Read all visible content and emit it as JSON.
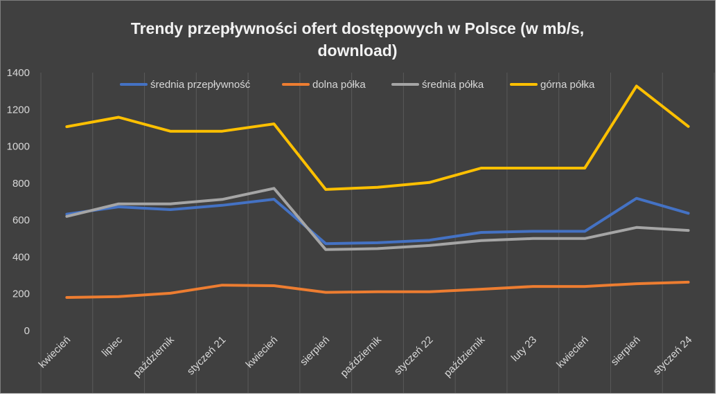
{
  "chart_data": {
    "type": "line",
    "title_lines": [
      "Trendy przepływności ofert dostępowych w Polsce (w mb/s,",
      "download)"
    ],
    "categories": [
      "kwiecień",
      "lipiec",
      "październik",
      "styczeń 21",
      "kwiecień",
      "sierpień",
      "październik",
      "styczeń 22",
      "październik",
      "luty 23",
      "kwiecień",
      "sierpień",
      "styczeń 24"
    ],
    "ylim": [
      0,
      1400
    ],
    "yticks": [
      0,
      200,
      400,
      600,
      800,
      1000,
      1200,
      1400
    ],
    "grid": true,
    "legend_position": "top",
    "background": "#404040",
    "series": [
      {
        "name": "średnia przepływność",
        "color": "#4472c4",
        "values": [
          632,
          672,
          657,
          680,
          713,
          472,
          477,
          491,
          533,
          539,
          539,
          718,
          637
        ]
      },
      {
        "name": "dolna półka",
        "color": "#ed7d31",
        "values": [
          180,
          185,
          203,
          247,
          244,
          208,
          211,
          211,
          225,
          240,
          240,
          255,
          263
        ]
      },
      {
        "name": "średnia półka",
        "color": "#a5a5a5",
        "values": [
          620,
          688,
          688,
          712,
          772,
          440,
          445,
          462,
          489,
          500,
          500,
          560,
          544
        ]
      },
      {
        "name": "górna półka",
        "color": "#ffc000",
        "values": [
          1107,
          1158,
          1082,
          1082,
          1122,
          766,
          778,
          804,
          882,
          882,
          882,
          1327,
          1108
        ]
      }
    ]
  }
}
